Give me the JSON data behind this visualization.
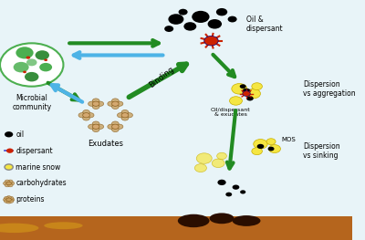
{
  "bg_color": "#e8f4f8",
  "seafloor_color": "#b5651d",
  "seafloor_dark": "#8B4513",
  "labels": {
    "microbial": "Microbial\ncommunity",
    "oil_dispersant": "Oil &\ndispersant",
    "exudates": "Exudates",
    "binding": "Binding",
    "oil_disp_exudates": "Oil/dispersant\n& exudates",
    "dispersion_agg": "Dispersion\nvs aggregation",
    "dispersion_sink": "Dispersion\nvs sinking",
    "mos": "MOS",
    "oil": "oil",
    "dispersant": "dispersant",
    "marine_snow": "marine snow",
    "carbohydrates": "carbohydrates",
    "proteins": "proteins"
  },
  "arrow_green": "#228B22",
  "arrow_blue": "#4db3e6",
  "text_color": "#333333"
}
